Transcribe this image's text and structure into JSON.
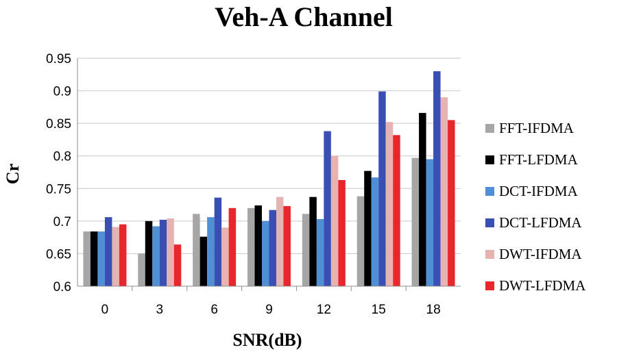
{
  "chart_data": {
    "type": "bar",
    "title": "Veh-A Channel",
    "xlabel": "SNR(dB)",
    "ylabel": "Cr",
    "categories": [
      "0",
      "3",
      "6",
      "9",
      "12",
      "15",
      "18"
    ],
    "ylim": [
      0.6,
      0.95
    ],
    "yticks": [
      "0.6",
      "0.65",
      "0.7",
      "0.75",
      "0.8",
      "0.85",
      "0.9",
      "0.95"
    ],
    "grid": true,
    "legend_position": "right",
    "series": [
      {
        "name": "FFT-IFDMA",
        "color": "#a6a6a6",
        "values": [
          0.684,
          0.65,
          0.711,
          0.72,
          0.711,
          0.738,
          0.797
        ]
      },
      {
        "name": "FFT-LFDMA",
        "color": "#000000",
        "values": [
          0.684,
          0.7,
          0.676,
          0.724,
          0.737,
          0.777,
          0.866
        ]
      },
      {
        "name": "DCT-IFDMA",
        "color": "#4f8fd6",
        "values": [
          0.684,
          0.692,
          0.706,
          0.7,
          0.703,
          0.767,
          0.795
        ]
      },
      {
        "name": "DCT-LFDMA",
        "color": "#3a4fb3",
        "values": [
          0.706,
          0.702,
          0.736,
          0.717,
          0.838,
          0.899,
          0.93
        ]
      },
      {
        "name": "DWT-IFDMA",
        "color": "#e7b2b2",
        "values": [
          0.691,
          0.704,
          0.69,
          0.737,
          0.8,
          0.852,
          0.89
        ]
      },
      {
        "name": "DWT-LFDMA",
        "color": "#e8262c",
        "values": [
          0.695,
          0.664,
          0.72,
          0.723,
          0.763,
          0.832,
          0.855
        ]
      }
    ]
  }
}
